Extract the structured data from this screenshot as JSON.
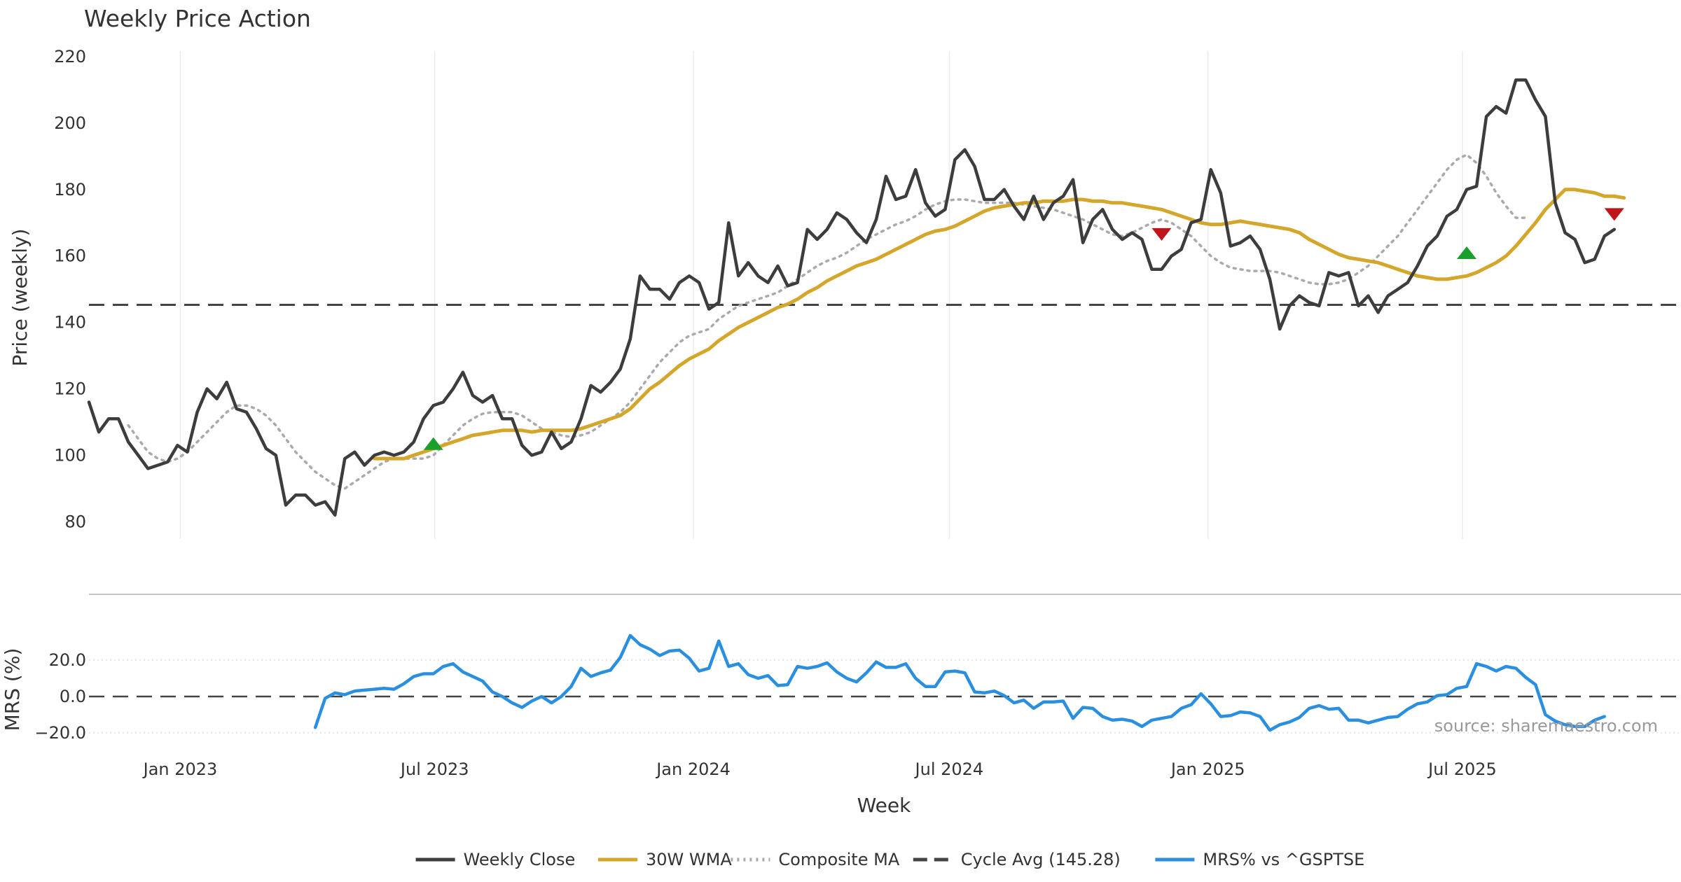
{
  "chart_data": [
    {
      "type": "line",
      "title": "Weekly Price Action",
      "ylabel": "Price (weekly)",
      "ylim": [
        75,
        222
      ],
      "yticks": [
        "80",
        "100",
        "120",
        "140",
        "160",
        "180",
        "200",
        "220"
      ],
      "x_start": "2022-10-28",
      "x_step_days": 7,
      "series": [
        {
          "name": "Weekly Close",
          "color": "#3d3d3d",
          "style": "solid",
          "start_index": 0,
          "values": [
            116,
            107,
            111,
            111,
            104,
            100,
            96,
            97,
            98,
            103,
            101,
            113,
            120,
            117,
            122,
            114,
            113,
            108,
            102,
            100,
            85,
            88,
            88,
            85,
            86,
            82,
            99,
            101,
            97,
            100,
            101,
            100,
            101,
            104,
            111,
            115,
            116,
            120,
            125,
            118,
            116,
            118,
            111,
            111,
            103,
            100,
            101,
            107,
            102,
            104,
            111,
            121,
            119,
            122,
            126,
            135,
            154,
            150,
            150,
            147,
            152,
            154,
            152,
            144,
            146,
            170,
            154,
            158,
            154,
            152,
            157,
            151,
            152,
            168,
            165,
            168,
            173,
            171,
            167,
            164,
            171,
            184,
            177,
            178,
            186,
            176,
            172,
            174,
            189,
            192,
            187,
            177,
            177,
            180,
            175,
            171,
            178,
            171,
            176,
            178,
            183,
            164,
            171,
            174,
            168,
            165,
            167,
            165,
            156,
            156,
            160,
            162,
            170,
            171,
            186,
            179,
            163,
            164,
            166,
            162,
            153,
            138,
            145,
            148,
            146,
            145,
            155,
            154,
            155,
            145,
            148,
            143,
            148,
            150,
            152,
            157,
            163,
            166,
            172,
            174,
            180,
            181,
            202,
            205,
            203,
            213,
            213,
            207,
            202,
            176,
            167,
            165,
            158,
            159,
            166,
            168
          ]
        },
        {
          "name": "30W WMA",
          "color": "#d4a72c",
          "style": "solid",
          "start_index": 29,
          "values": [
            99,
            99,
            99,
            99,
            100,
            101,
            102,
            103,
            104,
            105,
            106,
            106.5,
            107,
            107.5,
            107.5,
            107.5,
            107,
            107.5,
            107.5,
            107.5,
            107.5,
            108,
            109,
            110,
            111,
            112,
            114,
            117,
            120,
            122,
            124.5,
            127,
            129,
            130.5,
            132,
            134.5,
            136.5,
            138.5,
            140,
            141.5,
            143,
            144.5,
            145.5,
            147,
            149,
            150.5,
            152.5,
            154,
            155.5,
            157,
            158,
            159,
            160.5,
            162,
            163.5,
            165,
            166.5,
            167.5,
            168,
            169,
            170.5,
            172,
            173.5,
            174.5,
            175,
            175.5,
            176,
            176,
            176.5,
            176.5,
            176.5,
            177,
            177,
            176.5,
            176.5,
            176,
            176,
            175.5,
            175,
            174.5,
            174,
            173,
            172,
            171,
            170,
            169.5,
            169.5,
            170,
            170.5,
            170,
            169.5,
            169,
            168.5,
            168,
            167,
            165,
            163.5,
            162,
            160.5,
            159.5,
            159,
            158.5,
            158,
            157,
            156,
            155,
            154,
            153.5,
            153,
            153,
            153.5,
            154,
            155,
            156.5,
            158,
            160,
            163,
            166.5,
            170,
            174,
            177,
            180,
            180,
            179.5,
            179,
            178,
            178,
            177.5
          ]
        },
        {
          "name": "Composite MA",
          "color": "#aaaaaa",
          "style": "dotted",
          "start_index": 4,
          "values": [
            109,
            105,
            101,
            99,
            98,
            99,
            101,
            104,
            107,
            110,
            113,
            115,
            115,
            114,
            112,
            109,
            105,
            101,
            98,
            95,
            93,
            91,
            90,
            92,
            94,
            96,
            98,
            99,
            99,
            99,
            99,
            100,
            103,
            106,
            109,
            111,
            112.5,
            113,
            113,
            113,
            112,
            110,
            108,
            107,
            106,
            105.5,
            106,
            107,
            109,
            111,
            113,
            116,
            120,
            124,
            128,
            131,
            134,
            136,
            137,
            138,
            141,
            143,
            145,
            146,
            147,
            148,
            149,
            151,
            153,
            155,
            157,
            158.5,
            159.5,
            161,
            163,
            165,
            166.5,
            168,
            169.5,
            170.5,
            172,
            174,
            175.5,
            176.5,
            177,
            177,
            176.5,
            176,
            176,
            176,
            176,
            175.5,
            175,
            174.5,
            174,
            173,
            172,
            171,
            169.5,
            168,
            166.5,
            166,
            167,
            168.5,
            170,
            171,
            170,
            168,
            166,
            163,
            160,
            158,
            156.5,
            156,
            155.5,
            155.5,
            155.5,
            155,
            154,
            153,
            152,
            151.5,
            151.5,
            152,
            153,
            155,
            157,
            160,
            163,
            166,
            170,
            174,
            178,
            182,
            186,
            189,
            190.5,
            188,
            184,
            179,
            175,
            171.5,
            171.5
          ]
        }
      ],
      "reference_line": {
        "name": "Cycle Avg (145.28)",
        "value": 145.28,
        "color": "#444444",
        "style": "dashed"
      },
      "markers": [
        {
          "index": 35,
          "value": 103.5,
          "direction": "up",
          "color": "#1a9f2a"
        },
        {
          "index": 109,
          "value": 166.5,
          "direction": "down",
          "color": "#c0151a"
        },
        {
          "index": 140,
          "value": 161,
          "direction": "up",
          "color": "#1a9f2a"
        },
        {
          "index": 155,
          "value": 172.5,
          "direction": "down",
          "color": "#c0151a"
        }
      ],
      "grid": "x-only"
    },
    {
      "type": "line",
      "ylabel": "MRS (%)",
      "ylim": [
        -21,
        38
      ],
      "yticks": [
        "20.0",
        "0.0",
        "−20.0"
      ],
      "xlabel": "Week",
      "xticks": [
        "Jan 2023",
        "Jul 2023",
        "Jan 2024",
        "Jul 2024",
        "Jan 2025",
        "Jul 2025"
      ],
      "series": [
        {
          "name": "MRS% vs ^GSPTSE",
          "color": "#2b8fe0",
          "style": "solid",
          "start_index": 23,
          "values": [
            -17,
            -1,
            2,
            1,
            3,
            3.5,
            4,
            4.5,
            4,
            7,
            11,
            12.5,
            12.5,
            16.5,
            18,
            13.5,
            11,
            8.5,
            2.5,
            0,
            -3.5,
            -6,
            -2.5,
            0,
            -3.5,
            0,
            5.5,
            15.5,
            11,
            13,
            14.5,
            21.5,
            33.5,
            28.5,
            26,
            22.5,
            25,
            25.5,
            21,
            14,
            15.5,
            30.5,
            16.5,
            18,
            12,
            10,
            11.5,
            6,
            6.5,
            16.5,
            15.5,
            16.5,
            18.5,
            13.5,
            10,
            8,
            13,
            19,
            16,
            16,
            18,
            10,
            5.5,
            5.5,
            13.5,
            14,
            13,
            2.5,
            2,
            3,
            0.5,
            -3.5,
            -2,
            -6.5,
            -3,
            -3,
            -2.5,
            -12,
            -6,
            -6.5,
            -11,
            -13,
            -12.5,
            -13.5,
            -16.5,
            -13,
            -12,
            -11,
            -6.5,
            -4.5,
            1.5,
            -4,
            -11,
            -10.5,
            -8.5,
            -9,
            -11,
            -18.5,
            -15.5,
            -14,
            -11.5,
            -6.5,
            -5,
            -7,
            -6.5,
            -13,
            -13,
            -14.5,
            -13,
            -11.5,
            -11,
            -7,
            -4,
            -3,
            0.5,
            1,
            4.5,
            5.5,
            18,
            16.5,
            14,
            16.5,
            15.5,
            10.5,
            6.5,
            -10,
            -13.5,
            -15.5,
            -16.5,
            -16.5,
            -13,
            -11
          ]
        }
      ],
      "reference_line": {
        "value": 0,
        "color": "#444444",
        "style": "dashed"
      },
      "grid": "y-dotted"
    }
  ],
  "legend": {
    "placement": "bottom-center",
    "items": [
      {
        "label": "Weekly Close",
        "color": "#3d3d3d",
        "style": "solid"
      },
      {
        "label": "30W WMA",
        "color": "#d4a72c",
        "style": "solid"
      },
      {
        "label": "Composite MA",
        "color": "#aaaaaa",
        "style": "dotted"
      },
      {
        "label": "Cycle Avg (145.28)",
        "color": "#444444",
        "style": "dashed"
      },
      {
        "label": "MRS% vs ^GSPTSE",
        "color": "#2b8fe0",
        "style": "solid"
      }
    ]
  },
  "source": "source: sharemaestro.com"
}
